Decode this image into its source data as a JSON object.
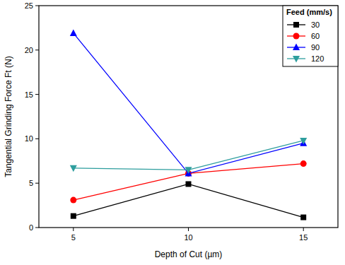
{
  "chart_data": {
    "type": "line",
    "x_label": "Depth of Cut (µm)",
    "y_label": "Tangential Grinding Force Ft (N)",
    "legend_title": "Feed (mm/s)",
    "legend": "top-right",
    "x": [
      5,
      10,
      15
    ],
    "xlim": [
      3.5,
      16.5
    ],
    "xticks": [
      5,
      10,
      15
    ],
    "ylim": [
      0,
      25
    ],
    "yticks": [
      0,
      5,
      10,
      15,
      20,
      25
    ],
    "grid": false,
    "series": [
      {
        "name": "30",
        "color": "#000000",
        "marker": "square",
        "line_style": "solid",
        "values": [
          1.3,
          4.9,
          1.15
        ]
      },
      {
        "name": "60",
        "color": "#ff0000",
        "marker": "circle",
        "line_style": "solid",
        "values": [
          3.1,
          6.1,
          7.2
        ]
      },
      {
        "name": "90",
        "color": "#0000ff",
        "marker": "triangle-up",
        "line_style": "solid",
        "values": [
          21.9,
          6.1,
          9.5
        ]
      },
      {
        "name": "120",
        "color": "#2e9e9e",
        "marker": "triangle-down",
        "line_style": "solid",
        "values": [
          6.7,
          6.5,
          9.8
        ]
      }
    ]
  }
}
